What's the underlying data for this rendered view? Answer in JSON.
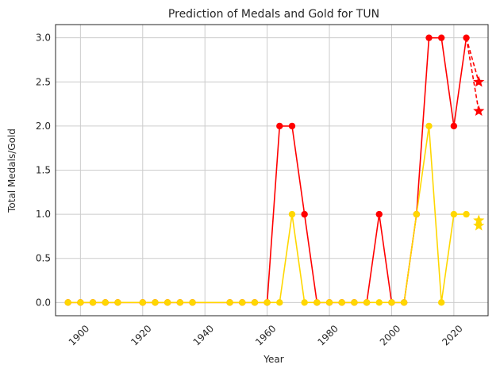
{
  "chart_data": {
    "type": "line",
    "title": "Prediction of Medals and Gold for TUN",
    "xlabel": "Year",
    "ylabel": "Total Medals/Gold",
    "xlim": [
      1892,
      2031
    ],
    "ylim": [
      -0.15,
      3.15
    ],
    "x_ticks": [
      1900,
      1920,
      1940,
      1960,
      1980,
      2000,
      2020
    ],
    "y_ticks": [
      0.0,
      0.5,
      1.0,
      1.5,
      2.0,
      2.5,
      3.0
    ],
    "grid": true,
    "colors": {
      "medals": "#ff0000",
      "gold": "#ffd700",
      "grid": "#cccccc",
      "axis": "#262626"
    },
    "x": [
      1896,
      1900,
      1904,
      1908,
      1912,
      1920,
      1924,
      1928,
      1932,
      1936,
      1948,
      1952,
      1956,
      1960,
      1964,
      1968,
      1972,
      1976,
      1980,
      1984,
      1988,
      1992,
      1996,
      2000,
      2004,
      2008,
      2012,
      2016,
      2020,
      2024
    ],
    "series": [
      {
        "key": "medals",
        "values": [
          0,
          0,
          0,
          0,
          0,
          0,
          0,
          0,
          0,
          0,
          0,
          0,
          0,
          0,
          2,
          2,
          1,
          0,
          0,
          0,
          0,
          0,
          1,
          0,
          0,
          1,
          3,
          3,
          2,
          3
        ]
      },
      {
        "key": "gold",
        "values": [
          0,
          0,
          0,
          0,
          0,
          0,
          0,
          0,
          0,
          0,
          0,
          0,
          0,
          0,
          0,
          1,
          0,
          0,
          0,
          0,
          0,
          0,
          0,
          0,
          0,
          1,
          2,
          0,
          1,
          1
        ]
      }
    ],
    "predictions": [
      {
        "key": "medals",
        "from": [
          2024,
          3
        ],
        "points": [
          [
            2028,
            2.5
          ],
          [
            2028,
            2.17
          ]
        ]
      },
      {
        "key": "gold",
        "from": null,
        "points": [
          [
            2028,
            0.93
          ],
          [
            2028,
            0.87
          ]
        ]
      }
    ]
  }
}
